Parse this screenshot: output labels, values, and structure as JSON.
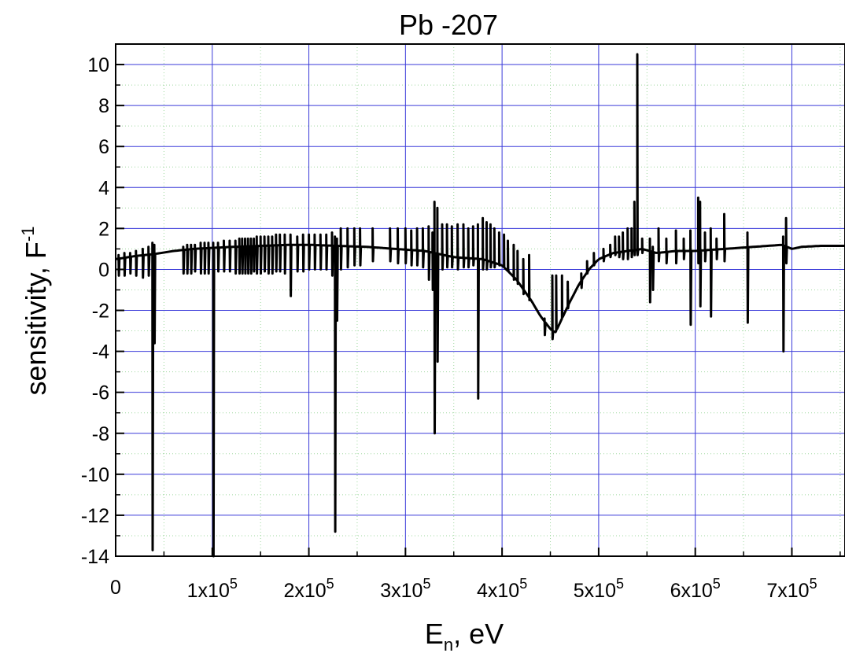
{
  "chart_data": {
    "type": "line",
    "title": "Pb -207",
    "xlabel": {
      "main": "E",
      "sub": "n",
      "rest": ", eV"
    },
    "ylabel": {
      "main": "sensitivity, F",
      "sup": "-1"
    },
    "xlim": [
      0,
      755000
    ],
    "ylim": [
      -14,
      11
    ],
    "grid": true,
    "x_ticks": [
      {
        "value": 0,
        "mant": "0",
        "exp": ""
      },
      {
        "value": 100000,
        "mant": "1x10",
        "exp": "5"
      },
      {
        "value": 200000,
        "mant": "2x10",
        "exp": "5"
      },
      {
        "value": 300000,
        "mant": "3x10",
        "exp": "5"
      },
      {
        "value": 400000,
        "mant": "4x10",
        "exp": "5"
      },
      {
        "value": 500000,
        "mant": "5x10",
        "exp": "5"
      },
      {
        "value": 600000,
        "mant": "6x10",
        "exp": "5"
      },
      {
        "value": 700000,
        "mant": "7x10",
        "exp": "5"
      }
    ],
    "y_ticks": [
      10,
      8,
      6,
      4,
      2,
      0,
      -2,
      -4,
      -6,
      -8,
      -10,
      -12,
      -14
    ],
    "colors": {
      "line": "#000000",
      "major_grid": "#3a3ad9",
      "minor_grid": "#9fd89f"
    },
    "series": [
      {
        "baseline": [
          [
            0,
            0.5
          ],
          [
            20000,
            0.65
          ],
          [
            40000,
            0.75
          ],
          [
            60000,
            0.9
          ],
          [
            80000,
            1.0
          ],
          [
            100000,
            1.05
          ],
          [
            120000,
            1.1
          ],
          [
            150000,
            1.15
          ],
          [
            180000,
            1.2
          ],
          [
            200000,
            1.2
          ],
          [
            230000,
            1.15
          ],
          [
            260000,
            1.1
          ],
          [
            290000,
            1.0
          ],
          [
            320000,
            0.9
          ],
          [
            350000,
            0.6
          ],
          [
            380000,
            0.5
          ],
          [
            400000,
            0.2
          ],
          [
            415000,
            -0.5
          ],
          [
            430000,
            -1.5
          ],
          [
            440000,
            -2.3
          ],
          [
            450000,
            -2.9
          ],
          [
            455000,
            -3.1
          ],
          [
            460000,
            -2.6
          ],
          [
            470000,
            -1.6
          ],
          [
            480000,
            -0.7
          ],
          [
            490000,
            0.0
          ],
          [
            500000,
            0.5
          ],
          [
            515000,
            0.8
          ],
          [
            530000,
            0.9
          ],
          [
            545000,
            1.0
          ],
          [
            560000,
            0.8
          ],
          [
            580000,
            0.9
          ],
          [
            600000,
            0.9
          ],
          [
            630000,
            1.0
          ],
          [
            660000,
            1.1
          ],
          [
            690000,
            1.2
          ],
          [
            700000,
            1.0
          ],
          [
            710000,
            1.1
          ],
          [
            730000,
            1.15
          ],
          [
            755000,
            1.15
          ]
        ],
        "resonances": [
          [
            3000,
            0.7,
            -0.3
          ],
          [
            9000,
            0.8,
            -0.3
          ],
          [
            15000,
            0.8,
            -0.2
          ],
          [
            21000,
            0.9,
            -0.3
          ],
          [
            28000,
            1.0,
            -0.4
          ],
          [
            34000,
            1.1,
            -0.3
          ],
          [
            38000,
            1.3,
            -13.7
          ],
          [
            40000,
            1.2,
            -3.6
          ],
          [
            70000,
            1.1,
            -0.2
          ],
          [
            74000,
            1.2,
            -0.2
          ],
          [
            78000,
            1.2,
            -0.2
          ],
          [
            82000,
            1.2,
            -0.1
          ],
          [
            88000,
            1.3,
            -0.2
          ],
          [
            92000,
            1.3,
            -0.2
          ],
          [
            96000,
            1.3,
            -0.2
          ],
          [
            101000,
            1.3,
            -14.0
          ],
          [
            106000,
            1.3,
            -0.1
          ],
          [
            112000,
            1.4,
            -0.1
          ],
          [
            118000,
            1.4,
            -0.1
          ],
          [
            124000,
            1.4,
            -0.2
          ],
          [
            128000,
            1.5,
            -0.2
          ],
          [
            131000,
            1.5,
            -0.2
          ],
          [
            134000,
            1.5,
            -0.2
          ],
          [
            137000,
            1.5,
            -0.2
          ],
          [
            140000,
            1.5,
            -0.2
          ],
          [
            143000,
            1.5,
            -0.1
          ],
          [
            146000,
            1.6,
            -0.2
          ],
          [
            150000,
            1.6,
            -0.2
          ],
          [
            154000,
            1.6,
            -0.1
          ],
          [
            158000,
            1.6,
            -0.2
          ],
          [
            162000,
            1.6,
            -0.2
          ],
          [
            166000,
            1.7,
            -0.1
          ],
          [
            170000,
            1.7,
            -0.1
          ],
          [
            175000,
            1.7,
            -0.2
          ],
          [
            181000,
            1.7,
            -1.3
          ],
          [
            188000,
            1.6,
            -0.1
          ],
          [
            194000,
            1.7,
            -0.1
          ],
          [
            200000,
            1.7,
            0.0
          ],
          [
            206000,
            1.7,
            0.0
          ],
          [
            212000,
            1.7,
            0.0
          ],
          [
            218000,
            1.7,
            0.0
          ],
          [
            224000,
            1.8,
            -0.3
          ],
          [
            227000,
            1.6,
            -12.8
          ],
          [
            229000,
            1.5,
            -2.5
          ],
          [
            233000,
            2.0,
            0.0
          ],
          [
            240000,
            2.0,
            0.1
          ],
          [
            247000,
            2.0,
            0.2
          ],
          [
            253000,
            2.0,
            0.2
          ],
          [
            266000,
            2.0,
            0.4
          ],
          [
            284000,
            2.0,
            0.4
          ],
          [
            292000,
            2.0,
            0.3
          ],
          [
            300000,
            2.0,
            0.3
          ],
          [
            306000,
            1.9,
            0.2
          ],
          [
            312000,
            2.0,
            0.2
          ],
          [
            318000,
            2.0,
            0.1
          ],
          [
            324000,
            2.1,
            -0.5
          ],
          [
            328000,
            1.8,
            -1.0
          ],
          [
            330000,
            3.3,
            -8.0
          ],
          [
            333000,
            3.0,
            -4.5
          ],
          [
            338000,
            2.2,
            0.0
          ],
          [
            343000,
            2.2,
            0.1
          ],
          [
            348000,
            2.1,
            0.1
          ],
          [
            354000,
            2.2,
            0.0
          ],
          [
            360000,
            2.2,
            0.1
          ],
          [
            365000,
            2.0,
            0.1
          ],
          [
            370000,
            2.1,
            0.2
          ],
          [
            375000,
            2.2,
            -6.3
          ],
          [
            380000,
            2.5,
            0.0
          ],
          [
            384000,
            2.3,
            0.0
          ],
          [
            388000,
            2.2,
            0.1
          ],
          [
            392000,
            2.0,
            0.1
          ],
          [
            397000,
            1.8,
            0.2
          ],
          [
            402000,
            1.7,
            0.1
          ],
          [
            406000,
            1.4,
            0.0
          ],
          [
            412000,
            1.2,
            -0.5
          ],
          [
            416000,
            0.9,
            -0.7
          ],
          [
            422000,
            0.5,
            -1.2
          ],
          [
            428000,
            0.7,
            -1.5
          ],
          [
            444000,
            -2.4,
            -3.2
          ],
          [
            452000,
            -0.3,
            -3.4
          ],
          [
            456000,
            -0.3,
            -2.9
          ],
          [
            462000,
            -0.3,
            -2.3
          ],
          [
            468000,
            -0.6,
            -1.9
          ],
          [
            482000,
            -0.2,
            -0.9
          ],
          [
            488000,
            0.4,
            -0.2
          ],
          [
            495000,
            0.8,
            0.2
          ],
          [
            505000,
            1.0,
            0.4
          ],
          [
            512000,
            1.2,
            0.6
          ],
          [
            517000,
            1.6,
            0.7
          ],
          [
            521000,
            1.6,
            0.6
          ],
          [
            525000,
            1.8,
            0.5
          ],
          [
            530000,
            2.0,
            0.5
          ],
          [
            534000,
            2.0,
            0.6
          ],
          [
            537000,
            3.3,
            0.7
          ],
          [
            540000,
            10.5,
            0.7
          ],
          [
            545000,
            1.5,
            0.8
          ],
          [
            553000,
            1.5,
            -1.6
          ],
          [
            556000,
            1.1,
            -1.0
          ],
          [
            562000,
            2.0,
            0.4
          ],
          [
            570000,
            1.5,
            0.3
          ],
          [
            580000,
            1.9,
            0.3
          ],
          [
            588000,
            1.5,
            0.5
          ],
          [
            595000,
            1.9,
            -2.7
          ],
          [
            603000,
            3.5,
            0.3
          ],
          [
            605000,
            3.3,
            -1.8
          ],
          [
            610000,
            1.8,
            0.4
          ],
          [
            616000,
            2.0,
            -2.3
          ],
          [
            622000,
            1.5,
            0.5
          ],
          [
            630000,
            2.7,
            0.4
          ],
          [
            654000,
            1.8,
            -2.6
          ],
          [
            691000,
            1.6,
            -4.0
          ],
          [
            694000,
            2.5,
            0.3
          ]
        ]
      }
    ]
  }
}
